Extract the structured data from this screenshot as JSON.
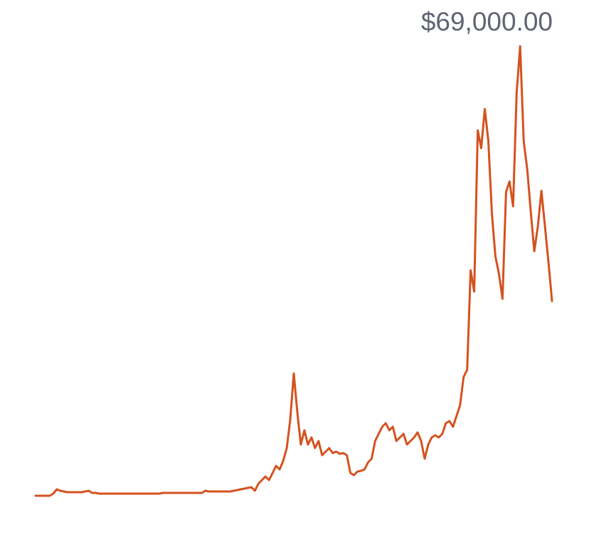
{
  "chart_data": {
    "type": "line",
    "annotation": "$69,000.00",
    "color": "#d4521f",
    "values": [
      0,
      0,
      0,
      0,
      0,
      330,
      980,
      760,
      660,
      550,
      550,
      550,
      550,
      550,
      660,
      760,
      440,
      440,
      330,
      330,
      330,
      330,
      330,
      330,
      330,
      330,
      330,
      330,
      330,
      330,
      330,
      330,
      330,
      330,
      330,
      330,
      440,
      440,
      440,
      440,
      440,
      440,
      440,
      440,
      440,
      440,
      440,
      440,
      760,
      660,
      660,
      660,
      660,
      660,
      660,
      660,
      760,
      870,
      980,
      1090,
      1200,
      1310,
      770,
      1860,
      2400,
      2950,
      2400,
      3490,
      4590,
      4040,
      5350,
      7310,
      11680,
      18770,
      12770,
      7860,
      10040,
      7860,
      8950,
      7310,
      8400,
      6220,
      6770,
      7310,
      6550,
      6770,
      6440,
      6550,
      6220,
      3490,
      3170,
      3710,
      3820,
      4040,
      5130,
      5680,
      8410,
      9500,
      10590,
      11140,
      10040,
      10590,
      8410,
      8950,
      9500,
      7860,
      8410,
      8950,
      9720,
      8410,
      5680,
      7860,
      8950,
      9280,
      8950,
      9500,
      11140,
      11460,
      10590,
      12230,
      13870,
      18230,
      19330,
      34610,
      31330,
      56090,
      53360,
      59370,
      54450,
      43320,
      36770,
      34040,
      30220,
      46620,
      48240,
      44420,
      61900,
      69000,
      54450,
      50080,
      43520,
      37530,
      41350,
      46810,
      41350,
      35890,
      29880
    ]
  }
}
